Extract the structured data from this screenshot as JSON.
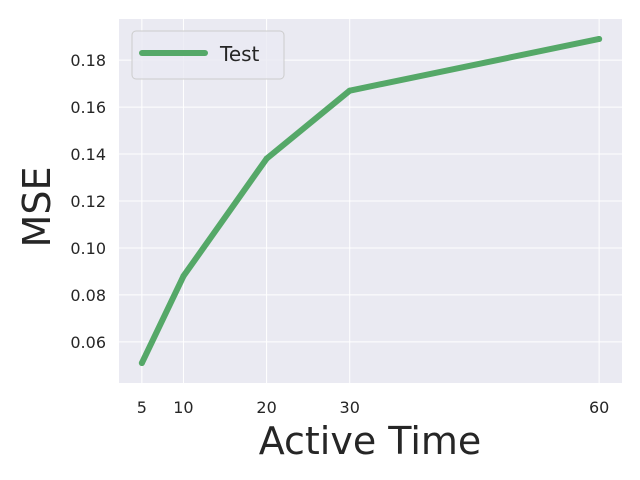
{
  "chart_data": {
    "type": "line",
    "title": "",
    "xlabel": "Active Time",
    "ylabel": "MSE",
    "x": [
      5,
      10,
      20,
      30,
      60
    ],
    "x_ticks": [
      5,
      10,
      20,
      30,
      60
    ],
    "x_tick_labels": [
      "5",
      "10",
      "20",
      "30",
      "60"
    ],
    "y_ticks": [
      0.06,
      0.08,
      0.1,
      0.12,
      0.14,
      0.16,
      0.18
    ],
    "y_tick_labels": [
      "0.06",
      "0.08",
      "0.10",
      "0.12",
      "0.14",
      "0.16",
      "0.18"
    ],
    "xlim": [
      2.25,
      62.75
    ],
    "ylim": [
      0.0425,
      0.1975
    ],
    "grid": true,
    "legend_position": "top-left",
    "series": [
      {
        "name": "Test",
        "color": "#55a868",
        "values": [
          0.051,
          0.088,
          0.138,
          0.167,
          0.189
        ]
      }
    ],
    "colors": {
      "plot_background": "#eaeaf2",
      "grid": "#ffffff",
      "text": "#262626"
    }
  }
}
